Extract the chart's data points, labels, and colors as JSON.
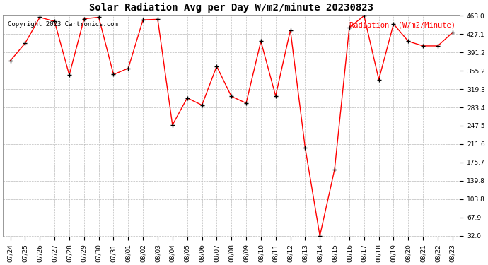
{
  "title": "Solar Radiation Avg per Day W/m2/minute 20230823",
  "copyright_text": "Copyright 2023 Cartronics.com",
  "legend_label": "Radiation  (W/m2/Minute)",
  "dates": [
    "07/24",
    "07/25",
    "07/26",
    "07/27",
    "07/28",
    "07/29",
    "07/30",
    "07/31",
    "08/01",
    "08/02",
    "08/03",
    "08/04",
    "08/05",
    "08/06",
    "08/07",
    "08/08",
    "08/09",
    "08/10",
    "08/11",
    "08/12",
    "08/13",
    "08/14",
    "08/15",
    "08/16",
    "08/17",
    "08/18",
    "08/19",
    "08/20",
    "08/21",
    "08/22",
    "08/23"
  ],
  "values": [
    375.0,
    409.0,
    460.0,
    452.0,
    347.0,
    457.0,
    460.0,
    348.0,
    360.0,
    455.0,
    456.0,
    249.0,
    302.0,
    288.0,
    364.0,
    305.0,
    292.0,
    413.0,
    306.0,
    435.0,
    205.0,
    32.0,
    162.0,
    440.0,
    463.0,
    338.0,
    447.0,
    413.0,
    404.0,
    404.0,
    430.0
  ],
  "yticks": [
    32.0,
    67.9,
    103.8,
    139.8,
    175.7,
    211.6,
    247.5,
    283.4,
    319.3,
    355.2,
    391.2,
    427.1,
    463.0
  ],
  "ymin": 32.0,
  "ymax": 463.0,
  "line_color": "red",
  "marker_color": "black",
  "background_color": "#ffffff",
  "grid_color": "#bbbbbb",
  "title_fontsize": 10,
  "copyright_fontsize": 6.5,
  "legend_fontsize": 7.5,
  "tick_fontsize": 6.5
}
